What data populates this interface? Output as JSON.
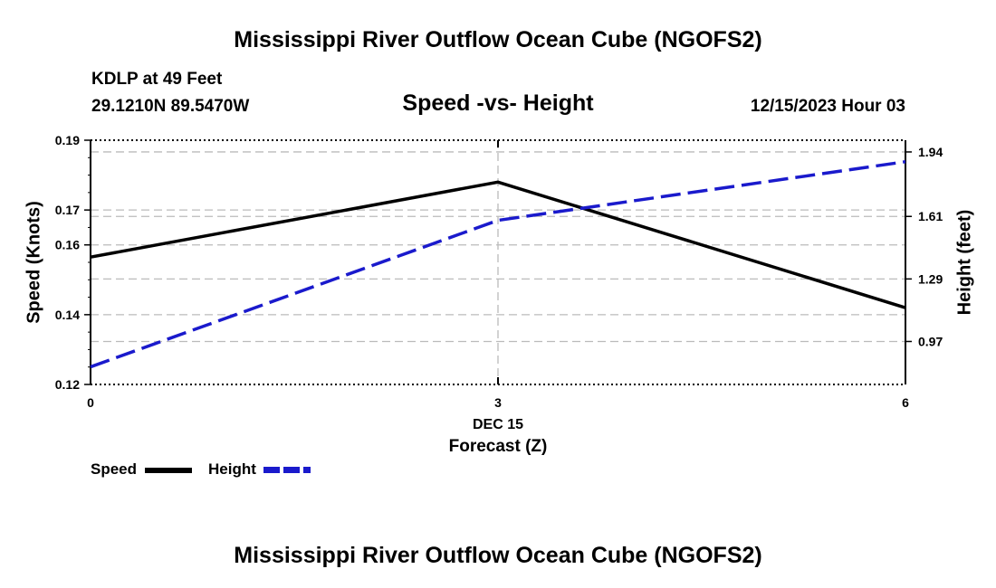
{
  "page": {
    "title_top": "Mississippi River Outflow Ocean Cube (NGOFS2)",
    "title_bottom": "Mississippi River Outflow Ocean Cube (NGOFS2)",
    "station": "KDLP at 49 Feet",
    "coords": "29.1210N  89.5470W",
    "datetime": "12/15/2023 Hour 03"
  },
  "colors": {
    "speed": "#000000",
    "height": "#1a1acc",
    "grid": "#bbbbbb"
  },
  "chart_data": {
    "type": "line",
    "title": "Speed -vs- Height",
    "xlabel": "Forecast (Z)",
    "xlabel_date": "DEC 15",
    "ylabel_left": "Speed (Knots)",
    "ylabel_right": "Height (feet)",
    "x": [
      0,
      3,
      6
    ],
    "x_ticks": [
      "0",
      "3",
      "6"
    ],
    "xlim": [
      0,
      6
    ],
    "ylim_left": [
      0.12,
      0.19
    ],
    "yticks_left": [
      "0.12",
      "0.14",
      "0.16",
      "0.17",
      "0.19"
    ],
    "yticks_left_values": [
      0.12,
      0.14,
      0.16,
      0.17,
      0.19
    ],
    "yticks_right": [
      "0.97",
      "1.29",
      "1.61",
      "1.94"
    ],
    "yticks_right_values": [
      0.97,
      1.29,
      1.61,
      1.94
    ],
    "ylim_right": [
      0.75,
      2.0
    ],
    "series": [
      {
        "name": "Speed",
        "axis": "left",
        "style": "solid",
        "values": [
          0.1565,
          0.178,
          0.142
        ]
      },
      {
        "name": "Height",
        "axis": "right",
        "style": "dashed",
        "values": [
          0.84,
          1.59,
          1.89
        ]
      }
    ],
    "legend": [
      {
        "label": "Speed"
      },
      {
        "label": "Height"
      }
    ]
  }
}
